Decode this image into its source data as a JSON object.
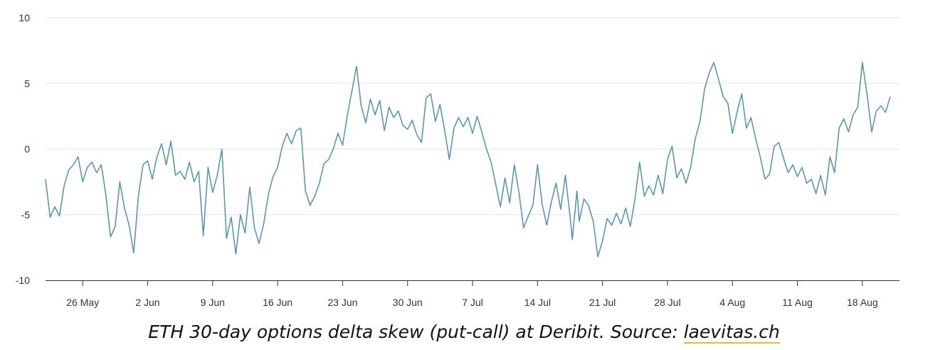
{
  "chart_data": {
    "type": "line",
    "ylim": [
      -10,
      10
    ],
    "yticks": [
      10,
      5,
      0,
      -5,
      -10
    ],
    "xlim": [
      "2023-05-22",
      "2023-08-22"
    ],
    "xticks": [
      {
        "date": "2023-05-26",
        "label": "26 May"
      },
      {
        "date": "2023-06-02",
        "label": "2 Jun"
      },
      {
        "date": "2023-06-09",
        "label": "9 Jun"
      },
      {
        "date": "2023-06-16",
        "label": "16 Jun"
      },
      {
        "date": "2023-06-23",
        "label": "23 Jun"
      },
      {
        "date": "2023-06-30",
        "label": "30 Jun"
      },
      {
        "date": "2023-07-07",
        "label": "7 Jul"
      },
      {
        "date": "2023-07-14",
        "label": "14 Jul"
      },
      {
        "date": "2023-07-21",
        "label": "21 Jul"
      },
      {
        "date": "2023-07-28",
        "label": "28 Jul"
      },
      {
        "date": "2023-08-04",
        "label": "4 Aug"
      },
      {
        "date": "2023-08-11",
        "label": "11 Aug"
      },
      {
        "date": "2023-08-18",
        "label": "18 Aug"
      }
    ],
    "grid": true,
    "series": [
      {
        "color": "#5a98aa",
        "points": [
          [
            "2023-05-22 00:00",
            -2.3
          ],
          [
            "2023-05-22 12:00",
            -5.2
          ],
          [
            "2023-05-23 00:00",
            -4.4
          ],
          [
            "2023-05-23 12:00",
            -5.1
          ],
          [
            "2023-05-24 00:00",
            -2.8
          ],
          [
            "2023-05-24 12:00",
            -1.6
          ],
          [
            "2023-05-25 00:00",
            -1.2
          ],
          [
            "2023-05-25 12:00",
            -0.6
          ],
          [
            "2023-05-26 00:00",
            -2.5
          ],
          [
            "2023-05-26 12:00",
            -1.4
          ],
          [
            "2023-05-27 00:00",
            -1.0
          ],
          [
            "2023-05-27 12:00",
            -1.8
          ],
          [
            "2023-05-28 00:00",
            -1.2
          ],
          [
            "2023-05-28 12:00",
            -3.5
          ],
          [
            "2023-05-29 00:00",
            -6.7
          ],
          [
            "2023-05-29 12:00",
            -5.9
          ],
          [
            "2023-05-30 00:00",
            -2.5
          ],
          [
            "2023-05-30 12:00",
            -4.5
          ],
          [
            "2023-05-31 00:00",
            -5.8
          ],
          [
            "2023-05-31 12:00",
            -7.9
          ],
          [
            "2023-06-01 00:00",
            -3.6
          ],
          [
            "2023-06-01 12:00",
            -1.2
          ],
          [
            "2023-06-02 00:00",
            -0.9
          ],
          [
            "2023-06-02 12:00",
            -2.3
          ],
          [
            "2023-06-03 00:00",
            -0.6
          ],
          [
            "2023-06-03 12:00",
            0.4
          ],
          [
            "2023-06-04 00:00",
            -1.2
          ],
          [
            "2023-06-04 12:00",
            0.6
          ],
          [
            "2023-06-05 00:00",
            -2.0
          ],
          [
            "2023-06-05 12:00",
            -1.7
          ],
          [
            "2023-06-06 00:00",
            -2.3
          ],
          [
            "2023-06-06 12:00",
            -1.0
          ],
          [
            "2023-06-07 00:00",
            -2.5
          ],
          [
            "2023-06-07 12:00",
            -1.7
          ],
          [
            "2023-06-08 00:00",
            -6.6
          ],
          [
            "2023-06-08 12:00",
            -1.4
          ],
          [
            "2023-06-09 00:00",
            -3.3
          ],
          [
            "2023-06-09 12:00",
            -2.0
          ],
          [
            "2023-06-10 00:00",
            0.0
          ],
          [
            "2023-06-10 12:00",
            -6.8
          ],
          [
            "2023-06-11 00:00",
            -5.2
          ],
          [
            "2023-06-11 12:00",
            -8.0
          ],
          [
            "2023-06-12 00:00",
            -5.0
          ],
          [
            "2023-06-12 12:00",
            -6.4
          ],
          [
            "2023-06-13 00:00",
            -2.9
          ],
          [
            "2023-06-13 12:00",
            -6.0
          ],
          [
            "2023-06-14 00:00",
            -7.2
          ],
          [
            "2023-06-14 12:00",
            -5.7
          ],
          [
            "2023-06-15 00:00",
            -3.5
          ],
          [
            "2023-06-15 12:00",
            -2.1
          ],
          [
            "2023-06-16 00:00",
            -1.4
          ],
          [
            "2023-06-16 12:00",
            0.2
          ],
          [
            "2023-06-17 00:00",
            1.2
          ],
          [
            "2023-06-17 12:00",
            0.4
          ],
          [
            "2023-06-18 00:00",
            1.4
          ],
          [
            "2023-06-18 12:00",
            1.6
          ],
          [
            "2023-06-19 00:00",
            -3.2
          ],
          [
            "2023-06-19 12:00",
            -4.3
          ],
          [
            "2023-06-20 00:00",
            -3.6
          ],
          [
            "2023-06-20 12:00",
            -2.6
          ],
          [
            "2023-06-21 00:00",
            -1.1
          ],
          [
            "2023-06-21 12:00",
            -0.8
          ],
          [
            "2023-06-22 00:00",
            0.0
          ],
          [
            "2023-06-22 12:00",
            1.2
          ],
          [
            "2023-06-23 00:00",
            0.3
          ],
          [
            "2023-06-23 12:00",
            2.5
          ],
          [
            "2023-06-24 00:00",
            4.4
          ],
          [
            "2023-06-24 12:00",
            6.3
          ],
          [
            "2023-06-25 00:00",
            3.3
          ],
          [
            "2023-06-25 12:00",
            2.0
          ],
          [
            "2023-06-26 00:00",
            3.8
          ],
          [
            "2023-06-26 12:00",
            2.6
          ],
          [
            "2023-06-27 00:00",
            3.7
          ],
          [
            "2023-06-27 12:00",
            1.4
          ],
          [
            "2023-06-28 00:00",
            3.2
          ],
          [
            "2023-06-28 12:00",
            2.4
          ],
          [
            "2023-06-29 00:00",
            2.9
          ],
          [
            "2023-06-29 12:00",
            1.8
          ],
          [
            "2023-06-30 00:00",
            1.5
          ],
          [
            "2023-06-30 12:00",
            2.2
          ],
          [
            "2023-07-01 00:00",
            1.1
          ],
          [
            "2023-07-01 12:00",
            0.5
          ],
          [
            "2023-07-02 00:00",
            3.9
          ],
          [
            "2023-07-02 12:00",
            4.2
          ],
          [
            "2023-07-03 00:00",
            2.1
          ],
          [
            "2023-07-03 12:00",
            3.4
          ],
          [
            "2023-07-04 00:00",
            1.4
          ],
          [
            "2023-07-04 12:00",
            -0.8
          ],
          [
            "2023-07-05 00:00",
            1.6
          ],
          [
            "2023-07-05 12:00",
            2.4
          ],
          [
            "2023-07-06 00:00",
            1.7
          ],
          [
            "2023-07-06 12:00",
            2.4
          ],
          [
            "2023-07-07 00:00",
            1.2
          ],
          [
            "2023-07-07 12:00",
            2.5
          ],
          [
            "2023-07-08 00:00",
            1.3
          ],
          [
            "2023-07-08 12:00",
            0.0
          ],
          [
            "2023-07-09 00:00",
            -1.0
          ],
          [
            "2023-07-09 12:00",
            -2.7
          ],
          [
            "2023-07-10 00:00",
            -4.4
          ],
          [
            "2023-07-10 12:00",
            -2.2
          ],
          [
            "2023-07-11 00:00",
            -4.1
          ],
          [
            "2023-07-11 12:00",
            -1.2
          ],
          [
            "2023-07-12 00:00",
            -3.3
          ],
          [
            "2023-07-12 12:00",
            -6.0
          ],
          [
            "2023-07-13 00:00",
            -5.1
          ],
          [
            "2023-07-13 12:00",
            -4.3
          ],
          [
            "2023-07-14 00:00",
            -1.2
          ],
          [
            "2023-07-14 12:00",
            -4.2
          ],
          [
            "2023-07-15 00:00",
            -5.8
          ],
          [
            "2023-07-15 12:00",
            -4.0
          ],
          [
            "2023-07-16 00:00",
            -2.6
          ],
          [
            "2023-07-16 12:00",
            -4.6
          ],
          [
            "2023-07-17 00:00",
            -2.0
          ],
          [
            "2023-07-17 12:00",
            -5.1
          ],
          [
            "2023-07-17 18:00",
            -6.9
          ],
          [
            "2023-07-18 06:00",
            -3.2
          ],
          [
            "2023-07-18 12:00",
            -5.5
          ],
          [
            "2023-07-19 00:00",
            -3.8
          ],
          [
            "2023-07-19 12:00",
            -4.3
          ],
          [
            "2023-07-20 00:00",
            -5.5
          ],
          [
            "2023-07-20 12:00",
            -8.2
          ],
          [
            "2023-07-21 00:00",
            -7.0
          ],
          [
            "2023-07-21 12:00",
            -5.3
          ],
          [
            "2023-07-22 00:00",
            -5.8
          ],
          [
            "2023-07-22 12:00",
            -4.9
          ],
          [
            "2023-07-23 00:00",
            -5.7
          ],
          [
            "2023-07-23 12:00",
            -4.5
          ],
          [
            "2023-07-24 00:00",
            -5.9
          ],
          [
            "2023-07-24 12:00",
            -3.8
          ],
          [
            "2023-07-25 00:00",
            -1.0
          ],
          [
            "2023-07-25 12:00",
            -3.6
          ],
          [
            "2023-07-26 00:00",
            -2.8
          ],
          [
            "2023-07-26 12:00",
            -3.5
          ],
          [
            "2023-07-27 00:00",
            -2.0
          ],
          [
            "2023-07-27 12:00",
            -3.4
          ],
          [
            "2023-07-28 00:00",
            -0.8
          ],
          [
            "2023-07-28 12:00",
            0.2
          ],
          [
            "2023-07-29 00:00",
            -2.2
          ],
          [
            "2023-07-29 12:00",
            -1.5
          ],
          [
            "2023-07-30 00:00",
            -2.6
          ],
          [
            "2023-07-30 12:00",
            -1.4
          ],
          [
            "2023-07-31 00:00",
            0.8
          ],
          [
            "2023-07-31 12:00",
            2.1
          ],
          [
            "2023-08-01 00:00",
            4.6
          ],
          [
            "2023-08-01 12:00",
            5.8
          ],
          [
            "2023-08-02 00:00",
            6.6
          ],
          [
            "2023-08-02 12:00",
            5.3
          ],
          [
            "2023-08-03 00:00",
            4.0
          ],
          [
            "2023-08-03 12:00",
            3.5
          ],
          [
            "2023-08-04 00:00",
            1.2
          ],
          [
            "2023-08-04 12:00",
            2.8
          ],
          [
            "2023-08-05 00:00",
            4.2
          ],
          [
            "2023-08-05 12:00",
            1.6
          ],
          [
            "2023-08-06 00:00",
            2.4
          ],
          [
            "2023-08-06 12:00",
            0.8
          ],
          [
            "2023-08-07 00:00",
            -0.6
          ],
          [
            "2023-08-07 12:00",
            -2.3
          ],
          [
            "2023-08-08 00:00",
            -1.9
          ],
          [
            "2023-08-08 12:00",
            0.2
          ],
          [
            "2023-08-09 00:00",
            0.5
          ],
          [
            "2023-08-09 12:00",
            -0.7
          ],
          [
            "2023-08-10 00:00",
            -1.8
          ],
          [
            "2023-08-10 12:00",
            -1.2
          ],
          [
            "2023-08-11 00:00",
            -2.1
          ],
          [
            "2023-08-11 12:00",
            -1.4
          ],
          [
            "2023-08-12 00:00",
            -2.6
          ],
          [
            "2023-08-12 12:00",
            -2.3
          ],
          [
            "2023-08-13 00:00",
            -3.4
          ],
          [
            "2023-08-13 12:00",
            -2.0
          ],
          [
            "2023-08-14 00:00",
            -3.5
          ],
          [
            "2023-08-14 12:00",
            -0.6
          ],
          [
            "2023-08-15 00:00",
            -1.8
          ],
          [
            "2023-08-15 12:00",
            1.6
          ],
          [
            "2023-08-16 00:00",
            2.3
          ],
          [
            "2023-08-16 12:00",
            1.3
          ],
          [
            "2023-08-17 00:00",
            2.6
          ],
          [
            "2023-08-17 12:00",
            3.2
          ],
          [
            "2023-08-18 00:00",
            6.6
          ],
          [
            "2023-08-18 12:00",
            4.2
          ],
          [
            "2023-08-19 00:00",
            1.3
          ],
          [
            "2023-08-19 12:00",
            2.9
          ],
          [
            "2023-08-20 00:00",
            3.3
          ],
          [
            "2023-08-20 12:00",
            2.8
          ],
          [
            "2023-08-21 00:00",
            4.0
          ]
        ]
      }
    ]
  },
  "caption": {
    "text": "ETH 30-day options delta skew (put-call) at Deribit. Source: ",
    "link": "laevitas.ch",
    "link_underline_color": "#e2b93b"
  }
}
